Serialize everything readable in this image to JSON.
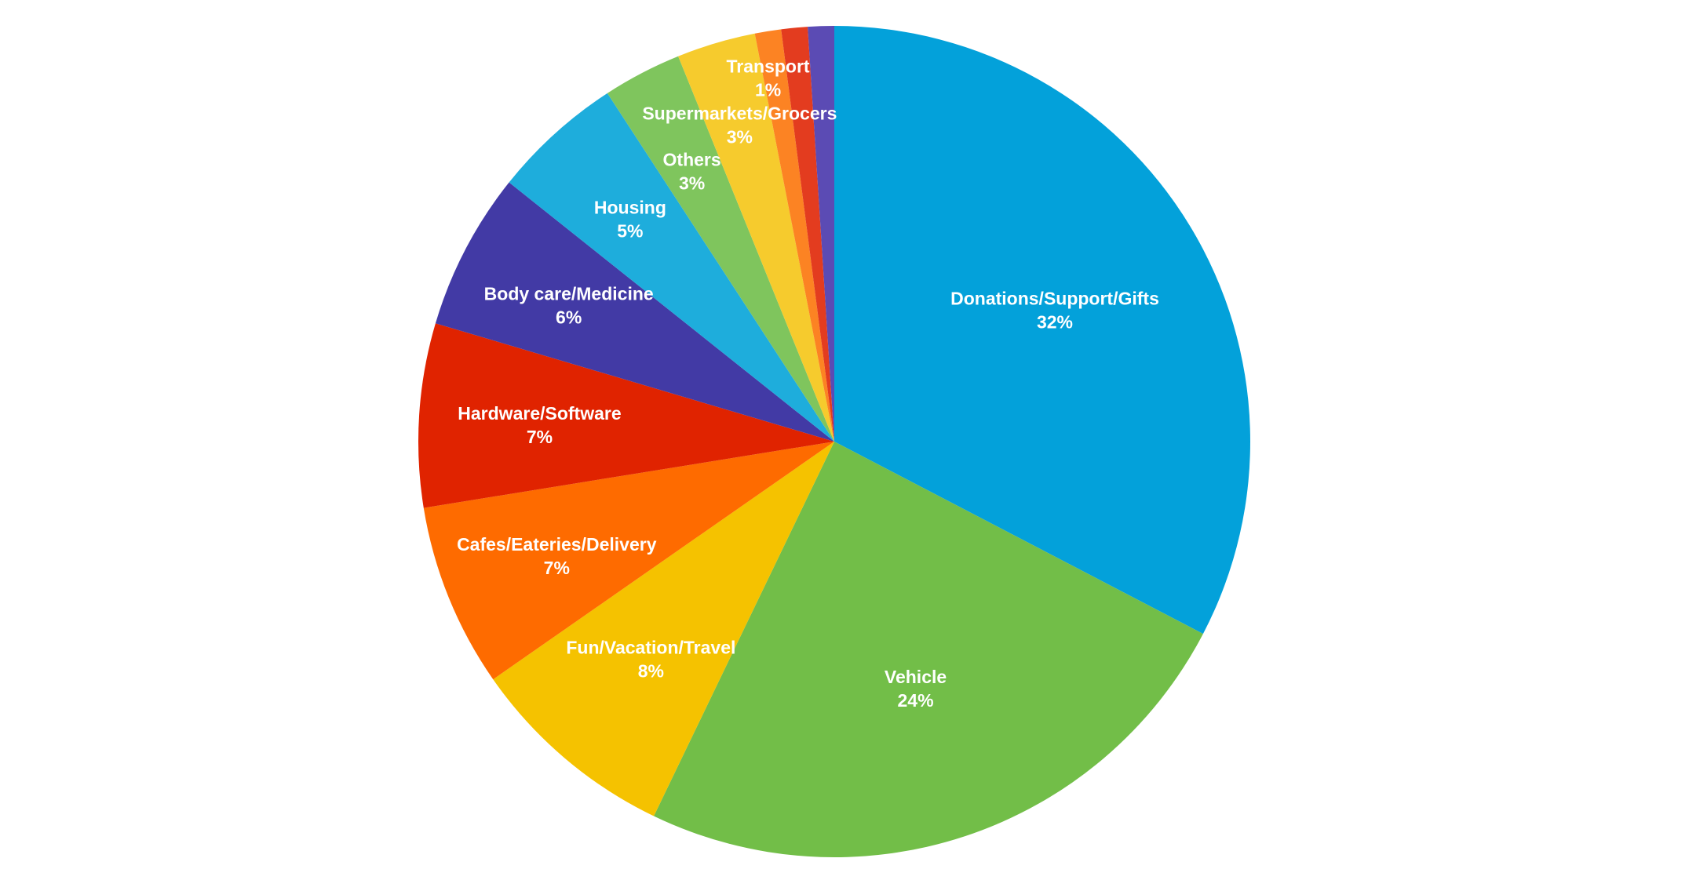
{
  "chart_data": {
    "type": "pie",
    "title": "",
    "legend": "none",
    "start_angle_deg": -90,
    "direction": "clockwise",
    "slices": [
      {
        "label": "Donations/Support/Gifts",
        "value": 32,
        "percent_label": "32%",
        "color": "#03a1da"
      },
      {
        "label": "Vehicle",
        "value": 24,
        "percent_label": "24%",
        "color": "#72be48"
      },
      {
        "label": "Fun/Vacation/Travel",
        "value": 8,
        "percent_label": "8%",
        "color": "#f5c200"
      },
      {
        "label": "Cafes/Eateries/Delivery",
        "value": 7,
        "percent_label": "7%",
        "color": "#fe6b00"
      },
      {
        "label": "Hardware/Software",
        "value": 7,
        "percent_label": "7%",
        "color": "#e02300"
      },
      {
        "label": "Body care/Medicine",
        "value": 6,
        "percent_label": "6%",
        "color": "#423aa5"
      },
      {
        "label": "Housing",
        "value": 5,
        "percent_label": "5%",
        "color": "#1eaddc"
      },
      {
        "label": "Others",
        "value": 3,
        "percent_label": "3%",
        "color": "#7fc55d"
      },
      {
        "label": "Supermarkets/Grocers",
        "value": 3,
        "percent_label": "3%",
        "color": "#f6cb2d"
      },
      {
        "label": "Transport",
        "value": 1,
        "percent_label": "1%",
        "color": "#fc8323"
      },
      {
        "label": "",
        "value": 1,
        "percent_label": "",
        "color": "#e33c1f"
      },
      {
        "label": "",
        "value": 1,
        "percent_label": "",
        "color": "#5b4bb4"
      }
    ]
  }
}
